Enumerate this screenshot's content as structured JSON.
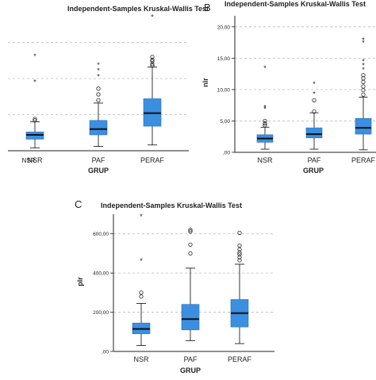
{
  "panels": {
    "a": {
      "title": "Independent-Samples Kruskal-Wallis Test",
      "xlabel": "GRUP",
      "categories": [
        "NSR",
        "PAF",
        "PERAF"
      ],
      "stray_label": "NSR"
    },
    "b": {
      "letter": "B",
      "title": "Independent-Samples Kruskal-Wallis Test",
      "ylabel": "nlr",
      "xlabel": "GRUP",
      "categories": [
        "NSR",
        "PAF",
        "PERAF"
      ],
      "yticks": [
        ",00",
        "5,00",
        "10,00",
        "15,00",
        "20,00"
      ]
    },
    "c": {
      "letter": "C",
      "title": "Independent-Samples Kruskal-Wallis Test",
      "ylabel": "plr",
      "xlabel": "GRUP",
      "categories": [
        "NSR",
        "PAF",
        "PERAF"
      ],
      "yticks": [
        ",00",
        "200,00",
        "400,00",
        "600,00"
      ]
    }
  },
  "colors": {
    "box": "#3a8fe0",
    "median": "#111111",
    "grid": "#bbbbbb",
    "axis": "#222222"
  },
  "chart_data": [
    {
      "type": "boxplot",
      "title": "Independent-Samples Kruskal-Wallis Test",
      "xlabel": "GRUP",
      "categories": [
        "NSR",
        "PAF",
        "PERAF"
      ],
      "ylim": [
        0,
        1
      ],
      "grid": "horizontal",
      "boxes": [
        {
          "category": "NSR",
          "whisker_low": 0.02,
          "q1": 0.08,
          "median": 0.11,
          "q3": 0.13,
          "whisker_high": 0.2,
          "outliers_circle": [
            0.21,
            0.22
          ],
          "outliers_star": [
            0.48,
            0.66
          ]
        },
        {
          "category": "PAF",
          "whisker_low": 0.03,
          "q1": 0.11,
          "median": 0.15,
          "q3": 0.21,
          "whisker_high": 0.33,
          "outliers_circle": [
            0.35,
            0.39,
            0.43
          ],
          "outliers_star": [
            0.52,
            0.56,
            0.6
          ]
        },
        {
          "category": "PERAF",
          "whisker_low": 0.04,
          "q1": 0.17,
          "median": 0.26,
          "q3": 0.36,
          "whisker_high": 0.58,
          "outliers_circle": [
            0.59,
            0.6,
            0.62,
            0.63,
            0.65
          ],
          "outliers_star": [
            0.93
          ]
        }
      ]
    },
    {
      "type": "boxplot",
      "title": "Independent-Samples Kruskal-Wallis Test",
      "xlabel": "GRUP",
      "ylabel": "nlr",
      "categories": [
        "NSR",
        "PAF",
        "PERAF"
      ],
      "ylim": [
        0,
        22
      ],
      "grid": "horizontal",
      "boxes": [
        {
          "category": "NSR",
          "whisker_low": 0.5,
          "q1": 1.6,
          "median": 2.2,
          "q3": 2.8,
          "whisker_high": 4.0,
          "outliers_circle": [
            4.3,
            4.6,
            5.0
          ],
          "outliers_star": [
            7.0,
            7.3,
            13.5
          ]
        },
        {
          "category": "PAF",
          "whisker_low": 0.5,
          "q1": 2.3,
          "median": 2.9,
          "q3": 3.9,
          "whisker_high": 6.3,
          "outliers_circle": [
            6.5,
            8.3
          ],
          "outliers_star": [
            9.4,
            11.0
          ]
        },
        {
          "category": "PERAF",
          "whisker_low": 0.4,
          "q1": 2.9,
          "median": 3.9,
          "q3": 5.4,
          "whisker_high": 8.8,
          "outliers_circle": [
            9.2,
            9.9,
            10.5,
            11.2,
            11.8,
            12.3
          ],
          "outliers_star": [
            13.3,
            14.0,
            14.6,
            17.6,
            18.0
          ]
        }
      ]
    },
    {
      "type": "boxplot",
      "title": "Independent-Samples Kruskal-Wallis Test",
      "xlabel": "GRUP",
      "ylabel": "plr",
      "categories": [
        "NSR",
        "PAF",
        "PERAF"
      ],
      "ylim": [
        0,
        700
      ],
      "grid": "horizontal",
      "boxes": [
        {
          "category": "NSR",
          "whisker_low": 30,
          "q1": 90,
          "median": 115,
          "q3": 145,
          "whisker_high": 245,
          "outliers_circle": [
            280,
            300
          ],
          "outliers_star": [
            465,
            780
          ]
        },
        {
          "category": "PAF",
          "whisker_low": 55,
          "q1": 110,
          "median": 165,
          "q3": 240,
          "whisker_high": 425,
          "outliers_circle": [
            500,
            545,
            612,
            620
          ],
          "outliers_star": []
        },
        {
          "category": "PERAF",
          "whisker_low": 40,
          "q1": 125,
          "median": 195,
          "q3": 265,
          "whisker_high": 445,
          "outliers_circle": [
            465,
            480,
            495,
            505,
            520,
            540,
            605
          ],
          "outliers_star": []
        }
      ]
    }
  ]
}
